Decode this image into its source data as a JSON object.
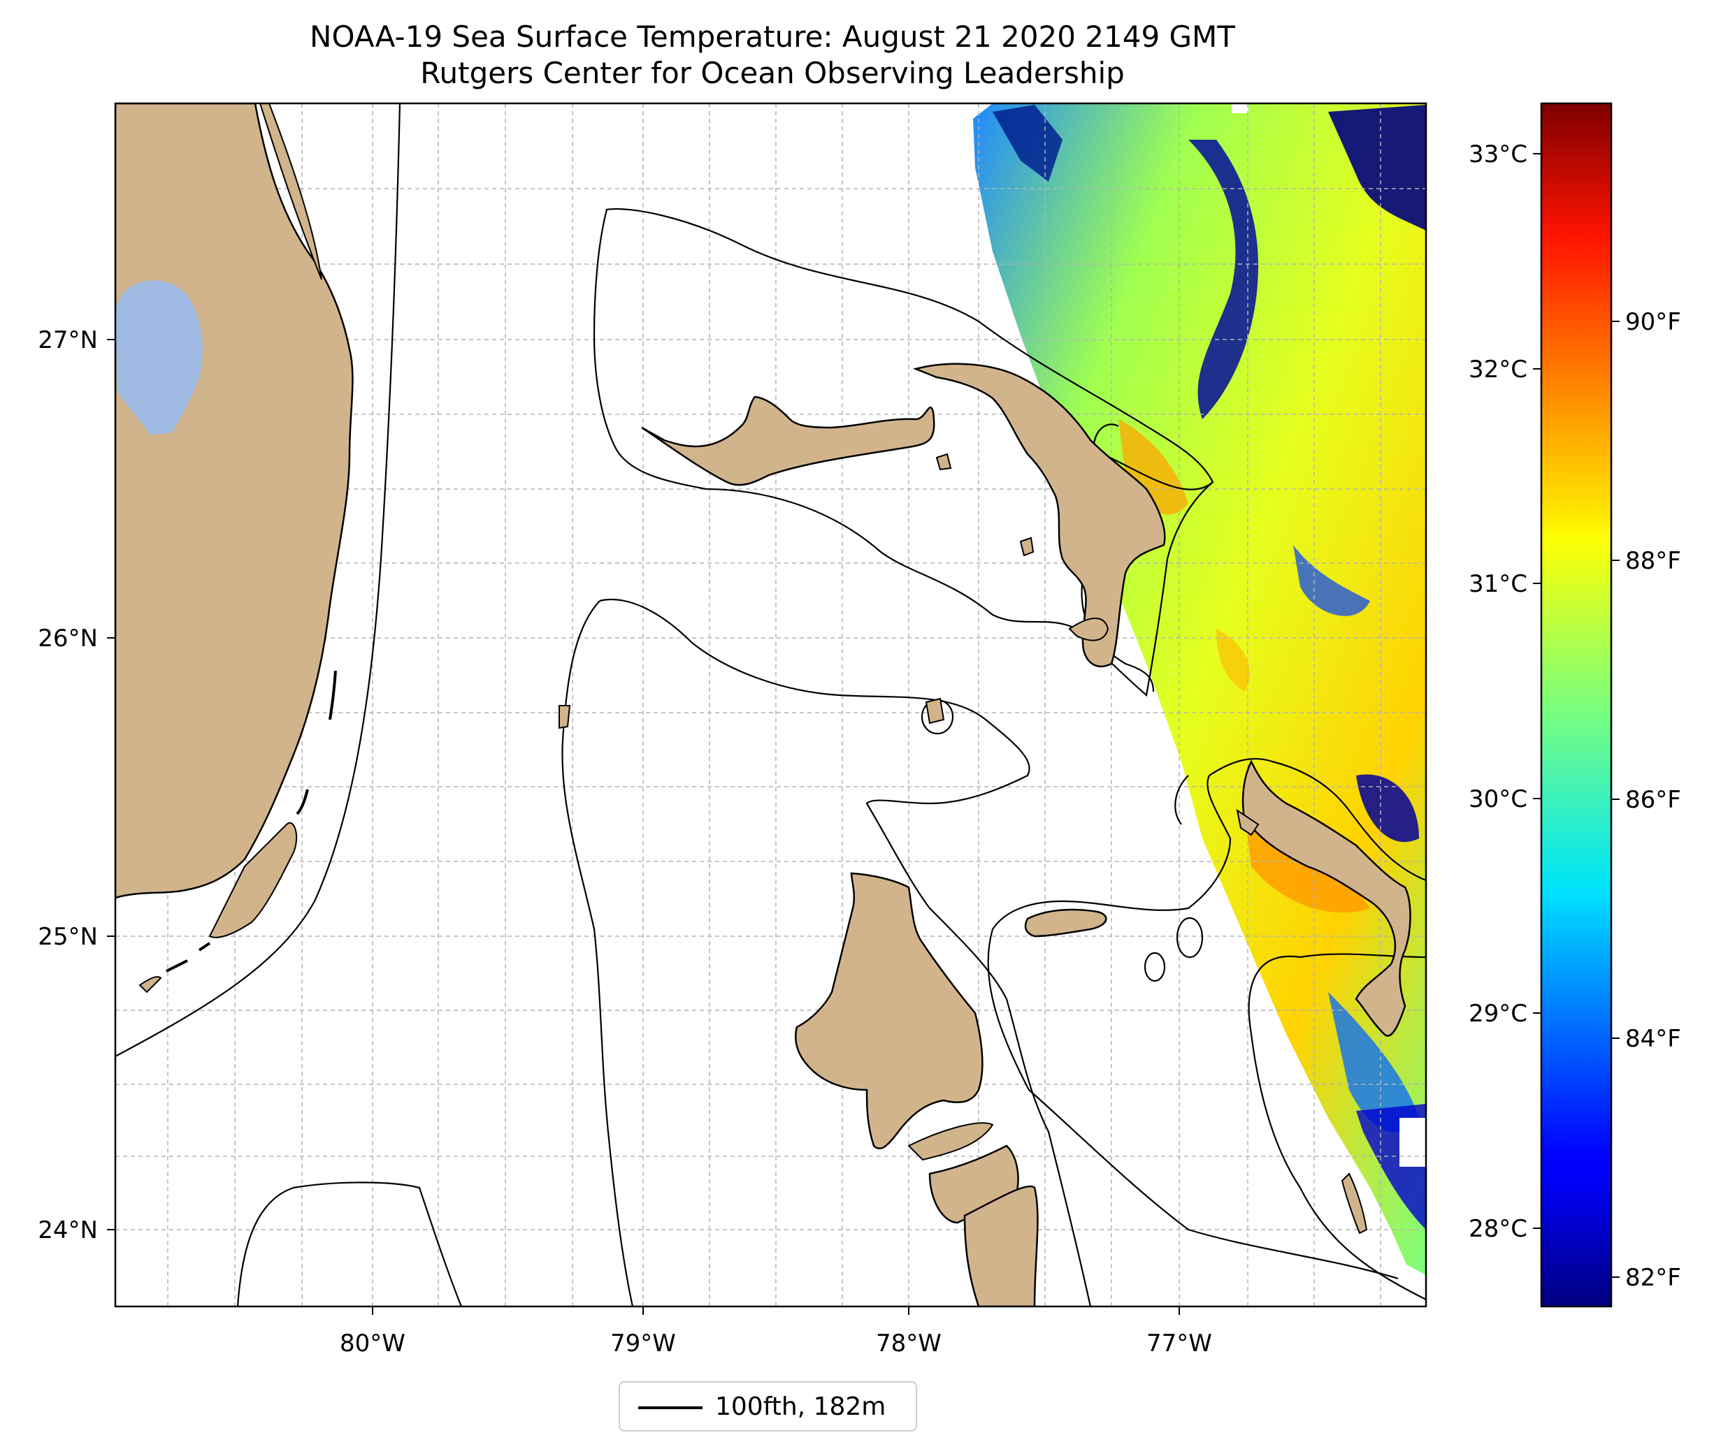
{
  "title": {
    "line1": "NOAA-19 Sea Surface Temperature: August 21 2020 2149 GMT",
    "line2": "Rutgers Center for Ocean Observing Leadership"
  },
  "map": {
    "lon_range": [
      -80.95,
      -76.1
    ],
    "lat_range": [
      23.75,
      27.8
    ],
    "lon_ticks": [
      "80°W",
      "79°W",
      "78°W",
      "77°W"
    ],
    "lat_ticks": [
      "27°N",
      "26°N",
      "25°N",
      "24°N"
    ],
    "land_color": "#d2b48c",
    "lake_color": "#9ebae2",
    "gridlines": true,
    "contour_legend": "100fth, 182m"
  },
  "colorbar": {
    "colormap": "jet",
    "celsius_ticks": [
      "33°C",
      "32°C",
      "31°C",
      "30°C",
      "29°C",
      "28°C"
    ],
    "fahrenheit_ticks": [
      "90°F",
      "88°F",
      "86°F",
      "84°F",
      "82°F"
    ]
  }
}
